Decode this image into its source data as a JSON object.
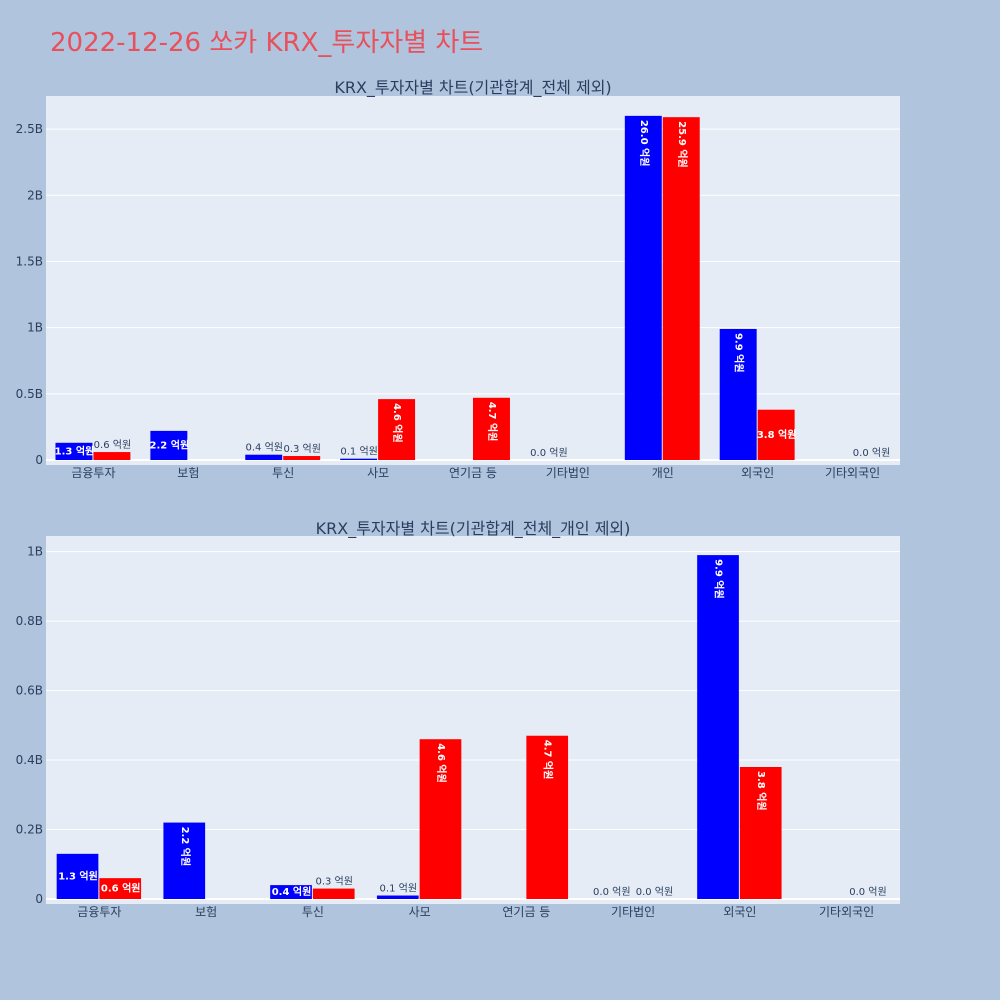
{
  "page": {
    "title": "2022-12-26 쏘카 KRX_투자자별 차트"
  },
  "colors": {
    "background": "#b0c4de",
    "plot_bg": "#e5ecf6",
    "buy": "#0000ff",
    "sell": "#ff0000",
    "title": "#e8505b"
  },
  "chart_data": [
    {
      "type": "bar",
      "title": "KRX_투자자별 차트(기관합계_전체 제외)",
      "categories": [
        "금융투자",
        "보험",
        "투신",
        "사모",
        "연기금 등",
        "기타법인",
        "개인",
        "외국인",
        "기타외국인"
      ],
      "yticks": [
        {
          "value": 0,
          "label": "0"
        },
        {
          "value": 500000000,
          "label": "0.5B"
        },
        {
          "value": 1000000000,
          "label": "1B"
        },
        {
          "value": 1500000000,
          "label": "1.5B"
        },
        {
          "value": 2000000000,
          "label": "2B"
        },
        {
          "value": 2500000000,
          "label": "2.5B"
        }
      ],
      "ylim": [
        0,
        2750000000
      ],
      "grid": true,
      "series": [
        {
          "values": [
            130000000,
            220000000,
            40000000,
            10000000,
            0,
            0,
            2600000000,
            990000000,
            0
          ],
          "labels": [
            "1.3 억원",
            "2.2 억원",
            "0.4 억원",
            "0.1 억원",
            "",
            "0.0 억원",
            "26.0 억원",
            "9.9 억원",
            ""
          ]
        },
        {
          "values": [
            60000000,
            0,
            30000000,
            460000000,
            470000000,
            0,
            2590000000,
            380000000,
            0
          ],
          "labels": [
            "0.6 억원",
            "",
            "0.3 억원",
            "4.6 억원",
            "4.7 억원",
            "",
            "25.9 억원",
            "3.8 억원",
            "0.0 억원"
          ]
        }
      ]
    },
    {
      "type": "bar",
      "title": "KRX_투자자별 차트(기관합계_전체_개인 제외)",
      "categories": [
        "금융투자",
        "보험",
        "투신",
        "사모",
        "연기금 등",
        "기타법인",
        "외국인",
        "기타외국인"
      ],
      "yticks": [
        {
          "value": 0,
          "label": "0"
        },
        {
          "value": 200000000,
          "label": "0.2B"
        },
        {
          "value": 400000000,
          "label": "0.4B"
        },
        {
          "value": 600000000,
          "label": "0.6B"
        },
        {
          "value": 800000000,
          "label": "0.8B"
        },
        {
          "value": 1000000000,
          "label": "1B"
        }
      ],
      "ylim": [
        0,
        1045000000
      ],
      "grid": true,
      "series": [
        {
          "values": [
            130000000,
            220000000,
            40000000,
            10000000,
            0,
            0,
            990000000,
            0
          ],
          "labels": [
            "1.3 억원",
            "2.2 억원",
            "0.4 억원",
            "0.1 억원",
            "",
            "0.0 억원",
            "9.9 억원",
            ""
          ]
        },
        {
          "values": [
            60000000,
            0,
            30000000,
            460000000,
            470000000,
            0,
            380000000,
            0
          ],
          "labels": [
            "0.6 억원",
            "",
            "0.3 억원",
            "4.6 억원",
            "4.7 억원",
            "0.0 억원",
            "3.8 억원",
            "0.0 억원"
          ]
        }
      ]
    }
  ]
}
